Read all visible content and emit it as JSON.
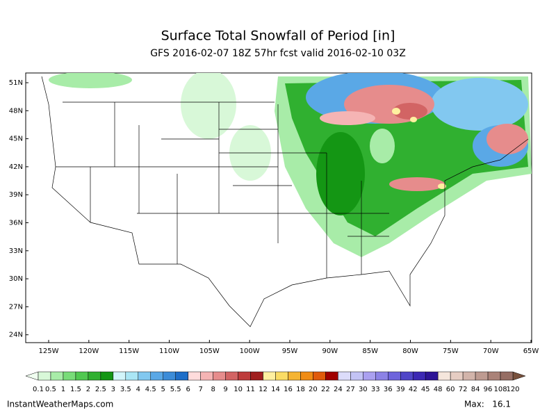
{
  "header": {
    "title": "Surface Total Snowfall of Period [in]",
    "subtitle": "GFS 2016-02-07 18Z 57hr fcst valid 2016-02-10 03Z"
  },
  "map": {
    "lat_labels": [
      "51N",
      "48N",
      "45N",
      "42N",
      "39N",
      "36N",
      "33N",
      "30N",
      "27N",
      "24N"
    ],
    "lon_labels": [
      "125W",
      "120W",
      "115W",
      "110W",
      "105W",
      "100W",
      "95W",
      "90W",
      "85W",
      "80W",
      "75W",
      "70W",
      "65W"
    ]
  },
  "colorbar": {
    "levels": [
      0.1,
      0.5,
      1,
      1.5,
      2,
      2.5,
      3,
      3.5,
      4,
      4.5,
      5,
      5.5,
      6,
      7,
      8,
      9,
      10,
      11,
      12,
      14,
      16,
      18,
      20,
      22,
      24,
      27,
      30,
      33,
      36,
      39,
      42,
      45,
      48,
      60,
      72,
      84,
      96,
      108,
      120
    ],
    "colors": [
      "#d8f8d8",
      "#a8eca8",
      "#78dc78",
      "#50c850",
      "#30b030",
      "#149614",
      "#d2f5fa",
      "#aae6f5",
      "#82c8f0",
      "#5aa8e6",
      "#3c8cd8",
      "#1e6ec8",
      "#ffdcdc",
      "#f5b4b4",
      "#e68c8c",
      "#d26464",
      "#be3c3c",
      "#a01e1e",
      "#fff0a0",
      "#fadc64",
      "#f5b432",
      "#f08c14",
      "#e05a0a",
      "#a00000",
      "#dcdcfa",
      "#c3c3f5",
      "#aaa0f0",
      "#8c82e6",
      "#6e64dc",
      "#5046c8",
      "#3c28b4",
      "#2d1496",
      "#f5e6dc",
      "#e6cdc3",
      "#d2b4aa",
      "#be9b91",
      "#aa8278",
      "#966e64"
    ],
    "under_color": "#f0fff0",
    "over_color": "#78503c"
  },
  "footer": {
    "site": "InstantWeatherMaps.com",
    "max_label": "Max:",
    "max_value": 16.1
  }
}
